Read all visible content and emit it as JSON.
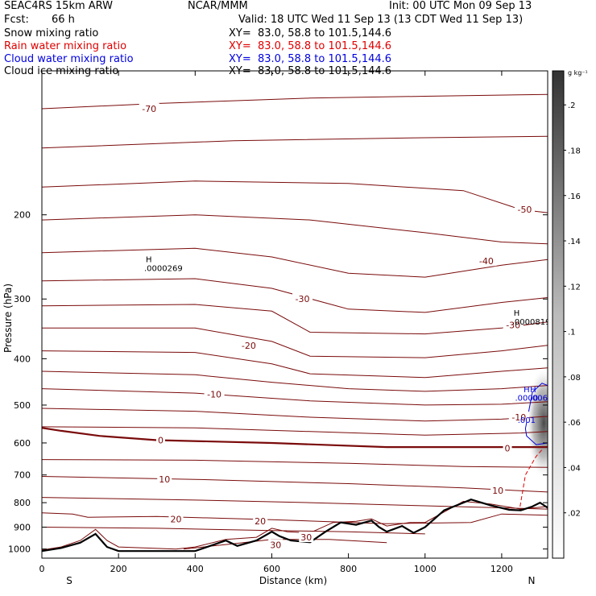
{
  "header": {
    "model": "SEAC4RS 15km ARW",
    "org": "NCAR/MMM",
    "init": "Init: 00 UTC Mon 09 Sep 13",
    "fcst_label": "Fcst:",
    "fcst_value": "66 h",
    "valid": "Valid: 18 UTC Wed 11 Sep 13 (13 CDT Wed 11 Sep 13)"
  },
  "fields": [
    {
      "name": "Snow mixing ratio",
      "xy": "XY=  83.0, 58.8 to 101.5,144.6",
      "color": "#000000"
    },
    {
      "name": "Rain water mixing ratio",
      "xy": "XY=  83.0, 58.8 to 101.5,144.6",
      "color": "#e00000"
    },
    {
      "name": "Cloud water mixing ratio",
      "xy": "XY=  83.0, 58.8 to 101.5,144.6",
      "color": "#0000e0"
    },
    {
      "name": "Cloud ice mixing ratio",
      "xy": "XY=  83.0, 58.8 to 101.5,144.6",
      "color": "#000000"
    }
  ],
  "chart_data": {
    "type": "cross-section",
    "xlabel": "Distance (km)",
    "ylabel": "Pressure (hPa)",
    "xlim": [
      0,
      1320
    ],
    "ylim": [
      1045,
      100
    ],
    "y_scale": "log",
    "x_ticks": [
      0,
      200,
      400,
      600,
      800,
      1000,
      1200
    ],
    "y_ticks": [
      200,
      300,
      400,
      500,
      600,
      700,
      800,
      900,
      1000
    ],
    "x_end_labels": {
      "left": "S",
      "right": "N"
    },
    "colorbar": {
      "units": "g kg⁻¹",
      "ticks": [
        0.02,
        0.04,
        0.06,
        0.08,
        0.1,
        0.12,
        0.14,
        0.16,
        0.18,
        0.2
      ],
      "tick_labels": [
        ".02",
        ".04",
        ".06",
        ".08",
        ".1",
        ".12",
        ".14",
        ".16",
        ".18",
        ".2"
      ]
    },
    "temperature_contour_labels": [
      {
        "text": "-70",
        "x": 280,
        "p": 120
      },
      {
        "text": "-50",
        "x": 1260,
        "p": 195
      },
      {
        "text": "-40",
        "x": 1160,
        "p": 250
      },
      {
        "text": "-30",
        "x": 680,
        "p": 300
      },
      {
        "text": "-30",
        "x": 1230,
        "p": 340
      },
      {
        "text": "-20",
        "x": 540,
        "p": 375
      },
      {
        "text": "-10",
        "x": 450,
        "p": 475
      },
      {
        "text": "-10",
        "x": 1245,
        "p": 530
      },
      {
        "text": "0",
        "x": 310,
        "p": 592
      },
      {
        "text": "0",
        "x": 1215,
        "p": 615
      },
      {
        "text": "10",
        "x": 320,
        "p": 715
      },
      {
        "text": "10",
        "x": 1190,
        "p": 755
      },
      {
        "text": "20",
        "x": 350,
        "p": 865
      },
      {
        "text": "20",
        "x": 570,
        "p": 875
      },
      {
        "text": "30",
        "x": 610,
        "p": 980
      },
      {
        "text": "30",
        "x": 690,
        "p": 945
      }
    ],
    "temperature_contours": [
      {
        "value": -70,
        "points": [
          [
            0,
            120
          ],
          [
            300,
            117
          ],
          [
            700,
            114
          ],
          [
            1000,
            113
          ],
          [
            1320,
            112
          ]
        ]
      },
      {
        "value": -60,
        "points": [
          [
            0,
            145
          ],
          [
            500,
            140
          ],
          [
            1000,
            138
          ],
          [
            1320,
            137
          ]
        ]
      },
      {
        "value": -50,
        "points": [
          [
            0,
            175
          ],
          [
            400,
            170
          ],
          [
            800,
            172
          ],
          [
            1100,
            178
          ],
          [
            1250,
            195
          ],
          [
            1320,
            198
          ]
        ]
      },
      {
        "value": -45,
        "points": [
          [
            0,
            205
          ],
          [
            400,
            200
          ],
          [
            700,
            205
          ],
          [
            1000,
            218
          ],
          [
            1200,
            228
          ],
          [
            1320,
            230
          ]
        ]
      },
      {
        "value": -40,
        "points": [
          [
            0,
            240
          ],
          [
            400,
            235
          ],
          [
            600,
            245
          ],
          [
            800,
            265
          ],
          [
            1000,
            270
          ],
          [
            1200,
            255
          ],
          [
            1320,
            248
          ]
        ]
      },
      {
        "value": -35,
        "points": [
          [
            0,
            275
          ],
          [
            400,
            272
          ],
          [
            600,
            285
          ],
          [
            800,
            315
          ],
          [
            1000,
            320
          ],
          [
            1200,
            305
          ],
          [
            1320,
            298
          ]
        ]
      },
      {
        "value": -30,
        "points": [
          [
            0,
            310
          ],
          [
            400,
            308
          ],
          [
            600,
            318
          ],
          [
            700,
            352
          ],
          [
            1000,
            355
          ],
          [
            1200,
            345
          ],
          [
            1320,
            335
          ]
        ]
      },
      {
        "value": -25,
        "points": [
          [
            0,
            345
          ],
          [
            400,
            345
          ],
          [
            600,
            368
          ],
          [
            700,
            395
          ],
          [
            1000,
            398
          ],
          [
            1200,
            385
          ],
          [
            1320,
            375
          ]
        ]
      },
      {
        "value": -20,
        "points": [
          [
            0,
            385
          ],
          [
            400,
            388
          ],
          [
            600,
            410
          ],
          [
            700,
            430
          ],
          [
            1000,
            438
          ],
          [
            1200,
            425
          ],
          [
            1320,
            418
          ]
        ]
      },
      {
        "value": -15,
        "points": [
          [
            0,
            425
          ],
          [
            400,
            432
          ],
          [
            600,
            448
          ],
          [
            800,
            462
          ],
          [
            1000,
            468
          ],
          [
            1200,
            462
          ],
          [
            1320,
            455
          ]
        ]
      },
      {
        "value": -10,
        "points": [
          [
            0,
            462
          ],
          [
            400,
            472
          ],
          [
            700,
            490
          ],
          [
            1000,
            500
          ],
          [
            1200,
            498
          ],
          [
            1320,
            492
          ]
        ]
      },
      {
        "value": -5,
        "points": [
          [
            0,
            508
          ],
          [
            400,
            515
          ],
          [
            700,
            530
          ],
          [
            1000,
            540
          ],
          [
            1200,
            535
          ],
          [
            1320,
            528
          ]
        ]
      },
      {
        "value": -2,
        "points": [
          [
            0,
            555
          ],
          [
            400,
            558
          ],
          [
            700,
            568
          ],
          [
            1000,
            578
          ],
          [
            1250,
            572
          ],
          [
            1320,
            568
          ]
        ]
      },
      {
        "value": 0,
        "points": [
          [
            0,
            558
          ],
          [
            50,
            566
          ],
          [
            150,
            580
          ],
          [
            300,
            592
          ],
          [
            600,
            600
          ],
          [
            900,
            612
          ],
          [
            1200,
            612
          ],
          [
            1320,
            612
          ]
        ]
      },
      {
        "value": 5,
        "points": [
          [
            0,
            650
          ],
          [
            400,
            652
          ],
          [
            800,
            662
          ],
          [
            1100,
            672
          ],
          [
            1320,
            675
          ]
        ]
      },
      {
        "value": 10,
        "points": [
          [
            0,
            705
          ],
          [
            400,
            715
          ],
          [
            800,
            730
          ],
          [
            1100,
            745
          ],
          [
            1320,
            760
          ]
        ]
      },
      {
        "value": 15,
        "points": [
          [
            0,
            780
          ],
          [
            400,
            790
          ],
          [
            700,
            800
          ],
          [
            1000,
            812
          ],
          [
            1320,
            825
          ]
        ]
      },
      {
        "value": 20,
        "points": [
          [
            0,
            840
          ],
          [
            80,
            845
          ],
          [
            120,
            858
          ],
          [
            300,
            855
          ],
          [
            600,
            868
          ],
          [
            900,
            885
          ],
          [
            1120,
            880
          ],
          [
            1200,
            845
          ],
          [
            1320,
            850
          ]
        ]
      },
      {
        "value": 25,
        "points": [
          [
            0,
            900
          ],
          [
            300,
            905
          ],
          [
            600,
            915
          ],
          [
            800,
            920
          ],
          [
            1000,
            930
          ]
        ]
      },
      {
        "value": 30,
        "points": [
          [
            370,
            1000
          ],
          [
            500,
            975
          ],
          [
            600,
            955
          ],
          [
            750,
            955
          ],
          [
            900,
            970
          ]
        ]
      }
    ],
    "freezing_level_dashed": [
      [
        1248,
        815
      ],
      [
        1262,
        700
      ],
      [
        1290,
        640
      ],
      [
        1305,
        620
      ]
    ],
    "terrain": [
      [
        0,
        1010
      ],
      [
        50,
        995
      ],
      [
        100,
        970
      ],
      [
        140,
        930
      ],
      [
        170,
        990
      ],
      [
        200,
        1010
      ],
      [
        400,
        1010
      ],
      [
        480,
        960
      ],
      [
        510,
        985
      ],
      [
        560,
        960
      ],
      [
        600,
        920
      ],
      [
        620,
        940
      ],
      [
        650,
        960
      ],
      [
        700,
        968
      ],
      [
        740,
        920
      ],
      [
        780,
        880
      ],
      [
        820,
        890
      ],
      [
        860,
        872
      ],
      [
        880,
        900
      ],
      [
        900,
        920
      ],
      [
        940,
        895
      ],
      [
        970,
        925
      ],
      [
        1000,
        900
      ],
      [
        1050,
        830
      ],
      [
        1100,
        800
      ],
      [
        1120,
        788
      ],
      [
        1170,
        810
      ],
      [
        1220,
        828
      ],
      [
        1250,
        830
      ],
      [
        1280,
        815
      ],
      [
        1300,
        800
      ],
      [
        1320,
        820
      ]
    ],
    "terrain_overlay_brown": [
      [
        0,
        1005
      ],
      [
        50,
        990
      ],
      [
        100,
        960
      ],
      [
        140,
        910
      ],
      [
        170,
        960
      ],
      [
        200,
        990
      ],
      [
        350,
        1000
      ],
      [
        400,
        990
      ],
      [
        480,
        955
      ],
      [
        560,
        945
      ],
      [
        600,
        905
      ],
      [
        640,
        920
      ],
      [
        700,
        925
      ],
      [
        760,
        880
      ],
      [
        820,
        875
      ],
      [
        860,
        865
      ],
      [
        900,
        895
      ],
      [
        960,
        880
      ],
      [
        1000,
        880
      ],
      [
        1100,
        795
      ],
      [
        1170,
        805
      ],
      [
        1250,
        825
      ],
      [
        1320,
        815
      ]
    ],
    "high_labels": [
      {
        "text": "H",
        "value": ".0000269",
        "x": 330,
        "p": 255
      },
      {
        "text": "H",
        "value": ".0000819",
        "x": 1290,
        "p": 330
      }
    ],
    "cloud_water_contour": {
      "label": ".001",
      "points": [
        [
          1262,
          560
        ],
        [
          1280,
          470
        ],
        [
          1305,
          450
        ],
        [
          1320,
          455
        ],
        [
          1320,
          600
        ],
        [
          1290,
          605
        ],
        [
          1265,
          580
        ]
      ]
    },
    "cloud_water_labels": [
      {
        "text": "H",
        "x": 1265,
        "p": 470
      },
      {
        "text": "H",
        "x": 1282,
        "p": 470
      },
      {
        "text": ".0000",
        "x": 1265,
        "p": 490
      },
      {
        "text": "006",
        "x": 1300,
        "p": 490
      }
    ],
    "shading_peak": 0.18
  }
}
